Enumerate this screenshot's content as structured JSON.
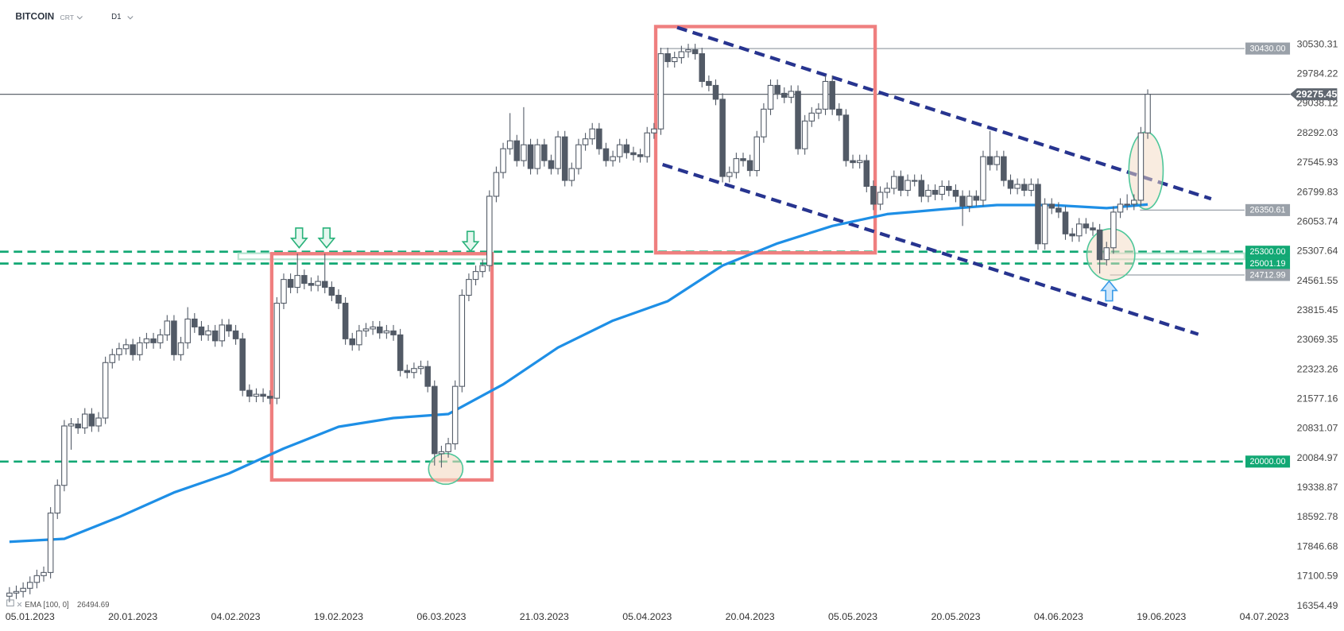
{
  "header": {
    "symbol": "BITCOIN",
    "contract": "CRT",
    "interval": "D1"
  },
  "chart_data": {
    "type": "candlestick",
    "x": [
      "02.01.2023",
      "03.01.2023",
      "04.01.2023",
      "05.01.2023",
      "06.01.2023",
      "07.01.2023",
      "08.01.2023",
      "09.01.2023",
      "10.01.2023",
      "11.01.2023",
      "12.01.2023",
      "13.01.2023",
      "14.01.2023",
      "15.01.2023",
      "16.01.2023",
      "17.01.2023",
      "18.01.2023",
      "19.01.2023",
      "20.01.2023",
      "21.01.2023",
      "22.01.2023",
      "23.01.2023",
      "24.01.2023",
      "25.01.2023",
      "26.01.2023",
      "27.01.2023",
      "28.01.2023",
      "29.01.2023",
      "30.01.2023",
      "31.01.2023",
      "01.02.2023",
      "02.02.2023",
      "03.02.2023",
      "04.02.2023",
      "05.02.2023",
      "06.02.2023",
      "07.02.2023",
      "08.02.2023",
      "09.02.2023",
      "10.02.2023",
      "11.02.2023",
      "12.02.2023",
      "13.02.2023",
      "14.02.2023",
      "15.02.2023",
      "16.02.2023",
      "17.02.2023",
      "18.02.2023",
      "19.02.2023",
      "20.02.2023",
      "21.02.2023",
      "22.02.2023",
      "23.02.2023",
      "24.02.2023",
      "25.02.2023",
      "26.02.2023",
      "27.02.2023",
      "28.02.2023",
      "01.03.2023",
      "02.03.2023",
      "03.03.2023",
      "04.03.2023",
      "05.03.2023",
      "06.03.2023",
      "07.03.2023",
      "08.03.2023",
      "09.03.2023",
      "10.03.2023",
      "11.03.2023",
      "12.03.2023",
      "13.03.2023",
      "14.03.2023",
      "15.03.2023",
      "16.03.2023",
      "17.03.2023",
      "18.03.2023",
      "19.03.2023",
      "20.03.2023",
      "21.03.2023",
      "22.03.2023",
      "23.03.2023",
      "24.03.2023",
      "25.03.2023",
      "26.03.2023",
      "27.03.2023",
      "28.03.2023",
      "29.03.2023",
      "30.03.2023",
      "31.03.2023",
      "01.04.2023",
      "02.04.2023",
      "03.04.2023",
      "04.04.2023",
      "05.04.2023",
      "06.04.2023",
      "07.04.2023",
      "08.04.2023",
      "09.04.2023",
      "10.04.2023",
      "11.04.2023",
      "12.04.2023",
      "13.04.2023",
      "14.04.2023",
      "15.04.2023",
      "16.04.2023",
      "17.04.2023",
      "18.04.2023",
      "19.04.2023",
      "20.04.2023",
      "21.04.2023",
      "22.04.2023",
      "23.04.2023",
      "24.04.2023",
      "25.04.2023",
      "26.04.2023",
      "27.04.2023",
      "28.04.2023",
      "29.04.2023",
      "30.04.2023",
      "01.05.2023",
      "02.05.2023",
      "03.05.2023",
      "04.05.2023",
      "05.05.2023",
      "06.05.2023",
      "07.05.2023",
      "08.05.2023",
      "09.05.2023",
      "10.05.2023",
      "11.05.2023",
      "12.05.2023",
      "13.05.2023",
      "14.05.2023",
      "15.05.2023",
      "16.05.2023",
      "17.05.2023",
      "18.05.2023",
      "19.05.2023",
      "20.05.2023",
      "21.05.2023",
      "22.05.2023",
      "23.05.2023",
      "24.05.2023",
      "25.05.2023",
      "26.05.2023",
      "27.05.2023",
      "28.05.2023",
      "29.05.2023",
      "30.05.2023",
      "31.05.2023",
      "01.06.2023",
      "02.06.2023",
      "03.06.2023",
      "04.06.2023",
      "05.06.2023",
      "06.06.2023",
      "07.06.2023",
      "08.06.2023",
      "09.06.2023",
      "10.06.2023",
      "11.06.2023",
      "12.06.2023",
      "13.06.2023",
      "14.06.2023",
      "15.06.2023",
      "16.06.2023",
      "17.06.2023"
    ],
    "open": [
      16600,
      16680,
      16720,
      16800,
      16950,
      17120,
      17200,
      18700,
      19400,
      20900,
      20950,
      20850,
      21200,
      20900,
      21100,
      22500,
      22700,
      22850,
      22950,
      22700,
      23000,
      23100,
      23000,
      23200,
      23550,
      22700,
      23000,
      23600,
      23400,
      23200,
      23300,
      23050,
      23450,
      23300,
      23100,
      21800,
      21650,
      21700,
      21650,
      21600,
      24000,
      24600,
      24400,
      24700,
      24500,
      24450,
      24550,
      24400,
      24200,
      24000,
      23100,
      22950,
      23300,
      23350,
      23400,
      23250,
      23300,
      23200,
      22300,
      22250,
      22350,
      22400,
      21900,
      20200,
      20250,
      20450,
      21900,
      24200,
      24600,
      24800,
      24950,
      26700,
      27300,
      27900,
      28100,
      27600,
      28000,
      27400,
      28000,
      27600,
      27400,
      28200,
      27100,
      27400,
      28000,
      28150,
      28400,
      27900,
      27600,
      27700,
      28000,
      27800,
      27750,
      27700,
      28300,
      28400,
      30300,
      30100,
      30200,
      30350,
      30400,
      30300,
      29600,
      29500,
      29150,
      27200,
      27300,
      27650,
      27600,
      27350,
      28200,
      28900,
      29500,
      29300,
      29200,
      29350,
      27900,
      28600,
      28800,
      28900,
      29600,
      28900,
      28750,
      27600,
      27550,
      27600,
      26950,
      26500,
      26800,
      26900,
      27200,
      26850,
      27100,
      27100,
      26700,
      26850,
      26750,
      26950,
      26850,
      26700,
      26450,
      26700,
      26600,
      27700,
      27500,
      27700,
      27100,
      26900,
      27000,
      26850,
      27000,
      25500,
      26500,
      26400,
      26300,
      25750,
      25700,
      26000,
      25900,
      25850,
      25100,
      25400,
      26300,
      26500,
      26500,
      26600,
      28300
    ],
    "high": [
      16830,
      16870,
      16950,
      17100,
      17270,
      17350,
      18850,
      19550,
      21050,
      21100,
      21100,
      21350,
      21350,
      21250,
      22650,
      22850,
      23000,
      23100,
      23100,
      23150,
      23250,
      23250,
      23350,
      23700,
      23700,
      23150,
      23900,
      23750,
      23550,
      23450,
      23450,
      23600,
      23600,
      23450,
      23250,
      21950,
      21850,
      21850,
      21800,
      24150,
      24750,
      24750,
      25250,
      24850,
      24650,
      24700,
      25250,
      24550,
      24350,
      24150,
      23250,
      23450,
      23500,
      23550,
      23550,
      23450,
      23450,
      23350,
      22450,
      22500,
      22550,
      22550,
      22050,
      20400,
      20600,
      22050,
      24350,
      24750,
      24950,
      25100,
      26850,
      27450,
      28050,
      28800,
      28250,
      28950,
      28150,
      28150,
      28150,
      27750,
      28350,
      28350,
      27550,
      28150,
      28300,
      28550,
      28550,
      28050,
      27850,
      28150,
      28150,
      27950,
      27900,
      28450,
      28550,
      30450,
      30450,
      30350,
      30500,
      30550,
      30550,
      30450,
      29750,
      29650,
      29300,
      27450,
      27800,
      27800,
      27750,
      28350,
      29050,
      29650,
      29650,
      29450,
      29500,
      29500,
      28750,
      28950,
      29050,
      29750,
      29750,
      29050,
      28900,
      27750,
      27750,
      27750,
      27100,
      26950,
      27050,
      27350,
      27350,
      27250,
      27250,
      27250,
      27000,
      27000,
      27100,
      27100,
      27000,
      26850,
      26850,
      26850,
      27850,
      28350,
      27850,
      27850,
      27250,
      27150,
      27150,
      27150,
      27150,
      26650,
      26650,
      26550,
      26450,
      25900,
      26150,
      26150,
      26050,
      26000,
      25550,
      26450,
      26650,
      26750,
      26750,
      28450,
      29400
    ],
    "low": [
      16450,
      16530,
      16570,
      16650,
      16800,
      16970,
      17050,
      18550,
      19250,
      20300,
      20700,
      20700,
      20750,
      20750,
      20950,
      22350,
      22550,
      22700,
      22550,
      22550,
      22850,
      22850,
      22850,
      23050,
      22550,
      22550,
      22850,
      23250,
      23050,
      23050,
      22900,
      22900,
      23150,
      22950,
      21650,
      21500,
      21500,
      21500,
      21450,
      21450,
      23850,
      24250,
      24250,
      24350,
      24300,
      24300,
      24250,
      24050,
      23850,
      22950,
      22800,
      22800,
      23150,
      23200,
      23100,
      23100,
      23050,
      22150,
      22100,
      22100,
      22200,
      21750,
      19900,
      19850,
      20100,
      20300,
      21750,
      24050,
      24450,
      24650,
      24800,
      26550,
      27150,
      27750,
      27450,
      27450,
      27250,
      27250,
      27450,
      27250,
      27250,
      26950,
      26950,
      27250,
      27850,
      28000,
      27750,
      27450,
      27450,
      27550,
      27650,
      27600,
      27550,
      27550,
      28150,
      28250,
      29950,
      29950,
      30050,
      30200,
      30150,
      29450,
      29350,
      29000,
      27050,
      27050,
      27150,
      27450,
      27200,
      27200,
      28050,
      28750,
      29150,
      29050,
      29050,
      27750,
      27750,
      28450,
      28650,
      28750,
      28750,
      28600,
      27450,
      27400,
      27400,
      26800,
      26350,
      26350,
      26650,
      26750,
      26700,
      26700,
      26950,
      26550,
      26550,
      26600,
      26600,
      26700,
      26550,
      25950,
      26300,
      26450,
      26450,
      27350,
      27350,
      26950,
      26750,
      26750,
      26700,
      26700,
      25350,
      25350,
      26250,
      26150,
      25600,
      25550,
      25550,
      25750,
      25700,
      24750,
      24950,
      25250,
      26150,
      26350,
      26350,
      26450,
      28150
    ],
    "close": [
      16680,
      16720,
      16800,
      16950,
      17120,
      17200,
      18700,
      19400,
      20900,
      20950,
      20850,
      21200,
      20900,
      21100,
      22500,
      22700,
      22850,
      22950,
      22700,
      23000,
      23100,
      23000,
      23200,
      23550,
      22700,
      23000,
      23600,
      23400,
      23200,
      23300,
      23050,
      23450,
      23300,
      23100,
      21800,
      21650,
      21700,
      21650,
      21600,
      24000,
      24600,
      24400,
      24700,
      24500,
      24450,
      24550,
      24400,
      24200,
      24000,
      23100,
      22950,
      23300,
      23350,
      23400,
      23250,
      23300,
      23200,
      22300,
      22250,
      22350,
      22400,
      21900,
      20200,
      20250,
      20450,
      21900,
      24200,
      24600,
      24800,
      24950,
      26700,
      27300,
      27900,
      28100,
      27600,
      28000,
      27400,
      28000,
      27600,
      27400,
      28200,
      27100,
      27400,
      28000,
      28150,
      28400,
      27900,
      27600,
      27700,
      28000,
      27800,
      27750,
      27700,
      28300,
      28400,
      30300,
      30100,
      30200,
      30350,
      30400,
      30300,
      29600,
      29500,
      29150,
      27200,
      27300,
      27650,
      27600,
      27350,
      28200,
      28900,
      29500,
      29300,
      29200,
      29350,
      27900,
      28600,
      28800,
      28900,
      29600,
      28900,
      28750,
      27600,
      27550,
      27600,
      26950,
      26500,
      26800,
      26900,
      27200,
      26850,
      27100,
      27100,
      26700,
      26850,
      26750,
      26950,
      26850,
      26700,
      26450,
      26700,
      26600,
      27700,
      27500,
      27700,
      27100,
      26900,
      27000,
      26850,
      27000,
      25500,
      26500,
      26400,
      26300,
      25750,
      25700,
      26000,
      25900,
      25850,
      25100,
      25400,
      26300,
      26500,
      26500,
      26600,
      28300,
      29275.45
    ],
    "up_color": "#ffffff",
    "down_color": "#525a66",
    "edge_color": "#525a66",
    "xlim": [
      "01.01.2023",
      "08.07.2023"
    ],
    "xticks": [
      "05.01.2023",
      "20.01.2023",
      "04.02.2023",
      "19.02.2023",
      "06.03.2023",
      "21.03.2023",
      "05.04.2023",
      "20.04.2023",
      "05.05.2023",
      "20.05.2023",
      "04.06.2023",
      "19.06.2023",
      "04.07.2023"
    ],
    "ylim": [
      16246,
      31656
    ],
    "yticks": [
      30530.31,
      29784.22,
      29038.12,
      28292.03,
      27545.93,
      26799.83,
      26053.74,
      25307.64,
      24561.55,
      23815.45,
      23069.35,
      22323.26,
      21577.16,
      20831.07,
      20084.97,
      19338.87,
      18592.78,
      17846.68,
      17100.59,
      16354.49
    ],
    "grid": false,
    "indicators": [
      {
        "name": "EMA [100, 0]",
        "color": "#1e8fe6",
        "x": [
          "02.01.2023",
          "10.01.2023",
          "18.01.2023",
          "26.01.2023",
          "03.02.2023",
          "11.02.2023",
          "19.02.2023",
          "27.02.2023",
          "07.03.2023",
          "15.03.2023",
          "23.03.2023",
          "31.03.2023",
          "08.04.2023",
          "16.04.2023",
          "24.04.2023",
          "02.05.2023",
          "10.05.2023",
          "18.05.2023",
          "26.05.2023",
          "03.06.2023",
          "11.06.2023",
          "17.06.2023"
        ],
        "values": [
          17975,
          18050,
          18600,
          19220,
          19700,
          20330,
          20880,
          21100,
          21200,
          21950,
          22880,
          23560,
          24050,
          24950,
          25510,
          25950,
          26250,
          26370,
          26480,
          26480,
          26400,
          26494.69
        ]
      }
    ],
    "levels": [
      {
        "value": 30430,
        "label": "30430.00",
        "color": "#9aa1a9",
        "style": "solid"
      },
      {
        "value": 29275.45,
        "color": "#5f666f",
        "style": "solid"
      },
      {
        "value": 26350.61,
        "color": "#9aa1a9",
        "style": "solid"
      },
      {
        "value": 25300,
        "label": "25300.00",
        "color": "#12a874",
        "style": "dashed"
      },
      {
        "value": 25001.19,
        "color": "#12a874",
        "style": "dashed"
      },
      {
        "value": 24712.99,
        "color": "#9aa1a9",
        "style": "solid"
      },
      {
        "value": 20000,
        "label": "20000.00",
        "color": "#12a874",
        "style": "dashed"
      }
    ]
  }
}
